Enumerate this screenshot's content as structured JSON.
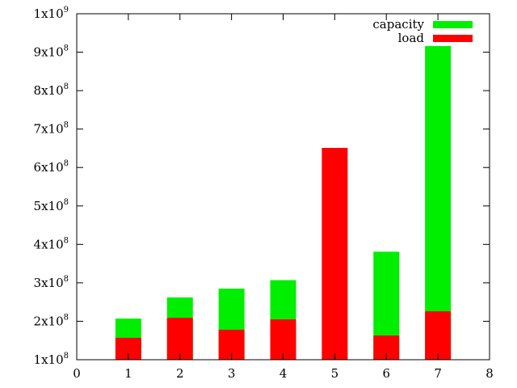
{
  "chart_data": {
    "type": "bar",
    "stacked_overlay": true,
    "x": [
      1,
      2,
      3,
      4,
      5,
      6,
      7
    ],
    "xlim": [
      0,
      8
    ],
    "xticks": [
      "0",
      "1",
      "2",
      "3",
      "4",
      "5",
      "6",
      "7",
      "8"
    ],
    "ylim": [
      100000000,
      1000000000
    ],
    "yticks": [
      {
        "mantissa": "1x10",
        "exp": "8",
        "value": 100000000
      },
      {
        "mantissa": "2x10",
        "exp": "8",
        "value": 200000000
      },
      {
        "mantissa": "3x10",
        "exp": "8",
        "value": 300000000
      },
      {
        "mantissa": "4x10",
        "exp": "8",
        "value": 400000000
      },
      {
        "mantissa": "5x10",
        "exp": "8",
        "value": 500000000
      },
      {
        "mantissa": "6x10",
        "exp": "8",
        "value": 600000000
      },
      {
        "mantissa": "7x10",
        "exp": "8",
        "value": 700000000
      },
      {
        "mantissa": "8x10",
        "exp": "8",
        "value": 800000000
      },
      {
        "mantissa": "9x10",
        "exp": "8",
        "value": 900000000
      },
      {
        "mantissa": "1x10",
        "exp": "9",
        "value": 1000000000
      }
    ],
    "series": [
      {
        "name": "capacity",
        "color": "#00ee00",
        "values": [
          207000000,
          262000000,
          285000000,
          307000000,
          null,
          381000000,
          916000000
        ]
      },
      {
        "name": "load",
        "color": "#ff0000",
        "values": [
          157000000,
          209000000,
          178000000,
          205000000,
          651000000,
          163000000,
          226000000
        ]
      }
    ],
    "legend_position": "top-right",
    "grid": false,
    "title": "",
    "xlabel": "",
    "ylabel": ""
  }
}
